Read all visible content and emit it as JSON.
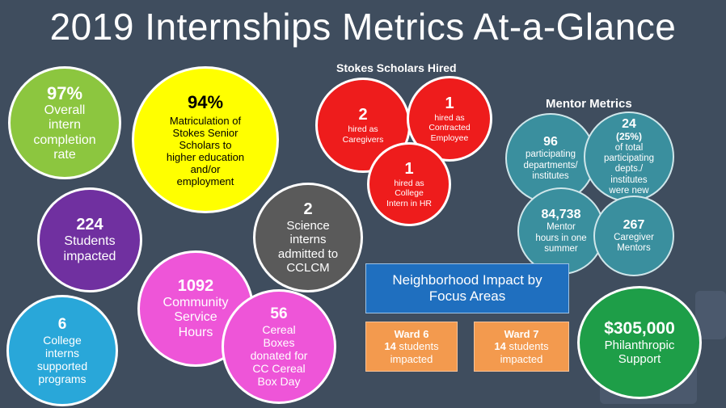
{
  "title": "2019 Internships Metrics At-a-Glance",
  "completion": {
    "value": "97%",
    "line1": "Overall",
    "line2": "intern",
    "line3": "completion",
    "line4": "rate"
  },
  "matriculation": {
    "value": "94%",
    "line1": "Matriculation of",
    "line2": "Stokes Senior",
    "line3": "Scholars to",
    "line4": "higher education",
    "line5": "and/or",
    "line6": "employment"
  },
  "students": {
    "value": "224",
    "line1": "Students",
    "line2": "impacted"
  },
  "science": {
    "value": "2",
    "line1": "Science",
    "line2": "interns",
    "line3": "admitted to",
    "line4": "CCLCM"
  },
  "community": {
    "value": "1092",
    "line1": "Community",
    "line2": "Service",
    "line3": "Hours"
  },
  "cereal": {
    "value": "56",
    "line1": "Cereal",
    "line2": "Boxes",
    "line3": "donated for",
    "line4": "CC Cereal",
    "line5": "Box Day"
  },
  "college": {
    "value": "6",
    "line1": "College",
    "line2": "interns",
    "line3": "supported",
    "line4": "programs"
  },
  "stokes": {
    "label": "Stokes Scholars Hired",
    "caregivers": {
      "value": "2",
      "line1": "hired as",
      "line2": "Caregivers"
    },
    "contracted": {
      "value": "1",
      "line1": "hired as",
      "line2": "Contracted",
      "line3": "Employee"
    },
    "hr": {
      "value": "1",
      "line1": "hired as",
      "line2": "College",
      "line3": "Intern in HR"
    }
  },
  "mentor": {
    "label": "Mentor Metrics",
    "departments": {
      "value": "96",
      "line1": "participating",
      "line2": "departments/",
      "line3": "institutes"
    },
    "new": {
      "value": "24",
      "pct": "(25%)",
      "line1": "of total",
      "line2": "participating",
      "line3": "depts./",
      "line4": "institutes",
      "line5": "were new"
    },
    "hours": {
      "value": "84,738",
      "line1": "Mentor",
      "line2": "hours in one",
      "line3": "summer"
    },
    "caregiver": {
      "value": "267",
      "line1": "Caregiver",
      "line2": "Mentors"
    }
  },
  "neighborhood": {
    "title1": "Neighborhood Impact by",
    "title2": "Focus Areas",
    "ward6": {
      "label": "Ward 6",
      "count": "14",
      "line1": "students",
      "line2": "impacted"
    },
    "ward7": {
      "label": "Ward 7",
      "count": "14",
      "line1": "students",
      "line2": "impacted"
    }
  },
  "philanthropic": {
    "value": "$305,000",
    "line1": "Philanthropic",
    "line2": "Support"
  },
  "colors": {
    "background": "#3f4d5e",
    "green": "#8cc63f",
    "yellow": "#ffff00",
    "purple": "#7030a0",
    "gray": "#5a5a5a",
    "magenta": "#ee55d8",
    "cyan": "#29a7d9",
    "red": "#ee1c1c",
    "teal": "#3a8f9e",
    "blue": "#1f6fbf",
    "orange": "#f39a4e",
    "darkgreen": "#1e9e48"
  }
}
